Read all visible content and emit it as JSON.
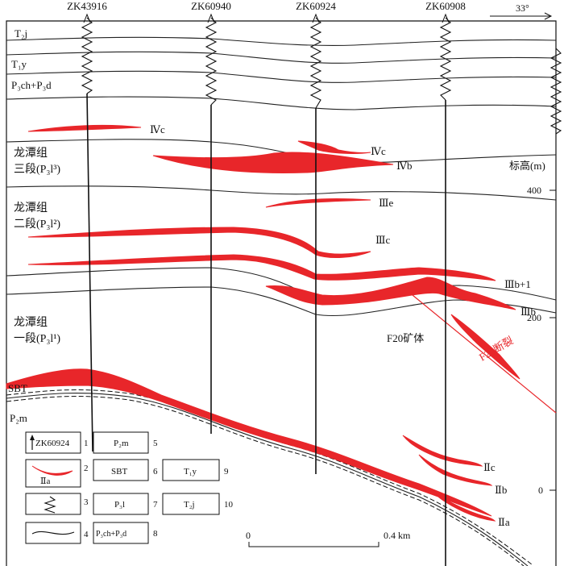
{
  "boreholes": [
    "ZK43916",
    "ZK60940",
    "ZK60924",
    "ZK60908"
  ],
  "direction": {
    "angle": "33°"
  },
  "strata_labels": {
    "t2j": "T₂j",
    "t1y": "T₁y",
    "p3ch_p3d": "P₃ch+P₃d",
    "member3_line1": "龙潭组",
    "member3_line2": "三段(P₃l³)",
    "member2_line1": "龙潭组",
    "member2_line2": "二段(P₃l²)",
    "member1_line1": "龙潭组",
    "member1_line2": "一段(P₃l¹)",
    "sbt": "SBT",
    "p2m": "P₂m"
  },
  "orebodies": {
    "ivc_left": "Ⅳc",
    "ivc_right": "Ⅳc",
    "ivb": "Ⅳb",
    "iiie": "Ⅲe",
    "iiic": "Ⅲc",
    "iiib1": "Ⅲb+1",
    "iiib": "Ⅲb",
    "f20_ore": "F20矿体",
    "f20_fault": "F20断裂",
    "iic": "Ⅱc",
    "iib": "Ⅱb",
    "iia": "Ⅱa"
  },
  "elevation": {
    "title": "标高(m)",
    "ticks": [
      "400",
      "200",
      "0"
    ]
  },
  "scale_bar": {
    "start": "0",
    "end": "0.4 km"
  },
  "legend": {
    "items": [
      {
        "num": "1",
        "label": "ZK60924"
      },
      {
        "num": "2",
        "label": "Ⅱa"
      },
      {
        "num": "3",
        "label": ""
      },
      {
        "num": "4",
        "label": ""
      },
      {
        "num": "5",
        "label": "P₂m"
      },
      {
        "num": "6",
        "label": "SBT"
      },
      {
        "num": "7",
        "label": "P₃l"
      },
      {
        "num": "8",
        "label": "P₃ch+P₃d"
      },
      {
        "num": "9",
        "label": "T₁y"
      },
      {
        "num": "10",
        "label": "T₂j"
      }
    ]
  }
}
